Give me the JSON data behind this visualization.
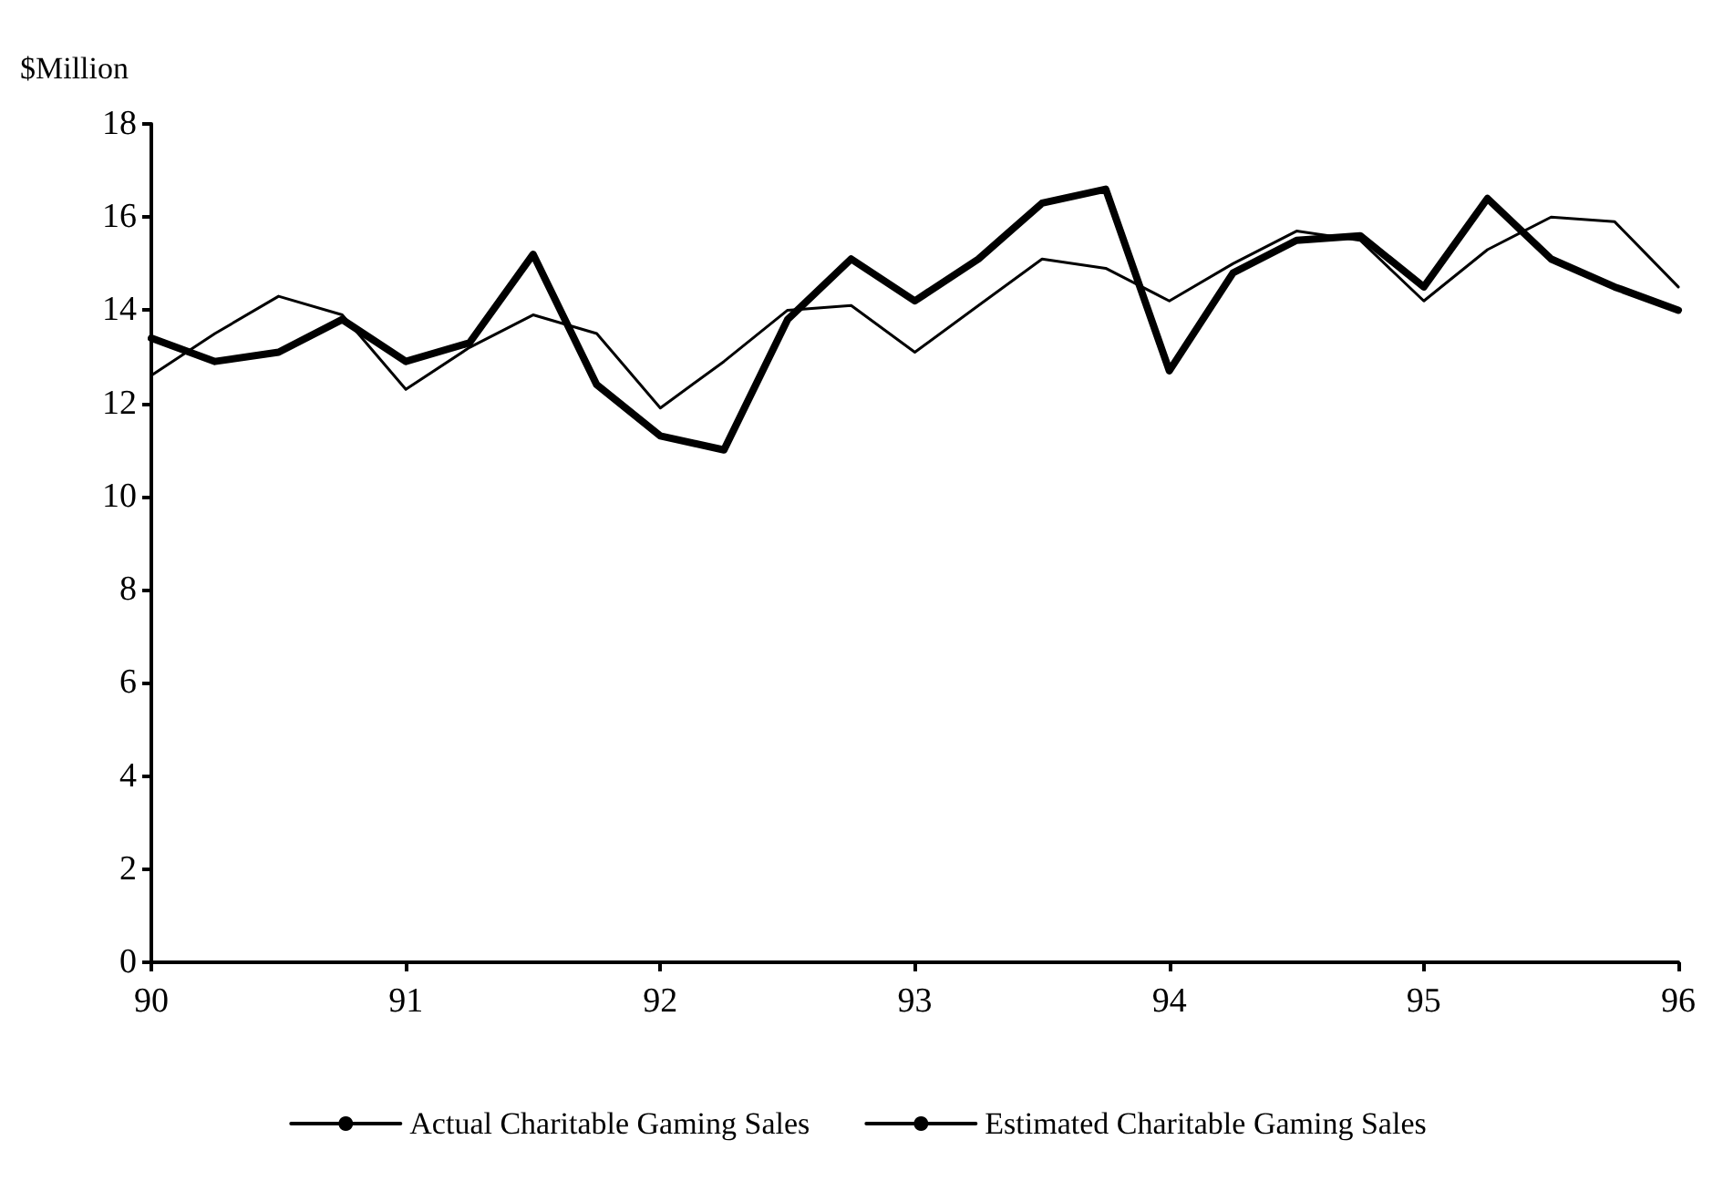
{
  "chart_data": {
    "type": "line",
    "ylabel": "$Million",
    "x": [
      90,
      90.25,
      90.5,
      90.75,
      91,
      91.25,
      91.5,
      91.75,
      92,
      92.25,
      92.5,
      92.75,
      93,
      93.25,
      93.5,
      93.75,
      94,
      94.25,
      94.5,
      94.75,
      95,
      95.25,
      95.5,
      95.75,
      96
    ],
    "series": [
      {
        "name": "Actual Charitable Gaming Sales",
        "color": "#000000",
        "values": [
          13.4,
          12.9,
          13.1,
          13.8,
          12.9,
          13.3,
          15.2,
          12.4,
          11.3,
          11.0,
          13.8,
          15.1,
          14.2,
          15.1,
          16.3,
          16.6,
          12.7,
          14.8,
          15.5,
          15.6,
          14.5,
          16.4,
          15.1,
          14.5,
          14.0
        ]
      },
      {
        "name": "Estimated Charitable Gaming Sales",
        "color": "#000000",
        "values": [
          12.6,
          13.5,
          14.3,
          13.9,
          12.3,
          13.2,
          13.9,
          13.5,
          11.9,
          12.9,
          14.0,
          14.1,
          13.1,
          14.1,
          15.1,
          14.9,
          14.2,
          15.0,
          15.7,
          15.5,
          14.2,
          15.3,
          16.0,
          15.9,
          14.5
        ]
      }
    ],
    "xlim": [
      90,
      96
    ],
    "xticks": [
      90,
      91,
      92,
      93,
      94,
      95,
      96
    ],
    "ylim": [
      0,
      18
    ],
    "yticks": [
      0,
      2,
      4,
      6,
      8,
      10,
      12,
      14,
      16,
      18
    ],
    "grid": false,
    "legend": "bottom",
    "marker": "none",
    "line_style": "solid"
  }
}
